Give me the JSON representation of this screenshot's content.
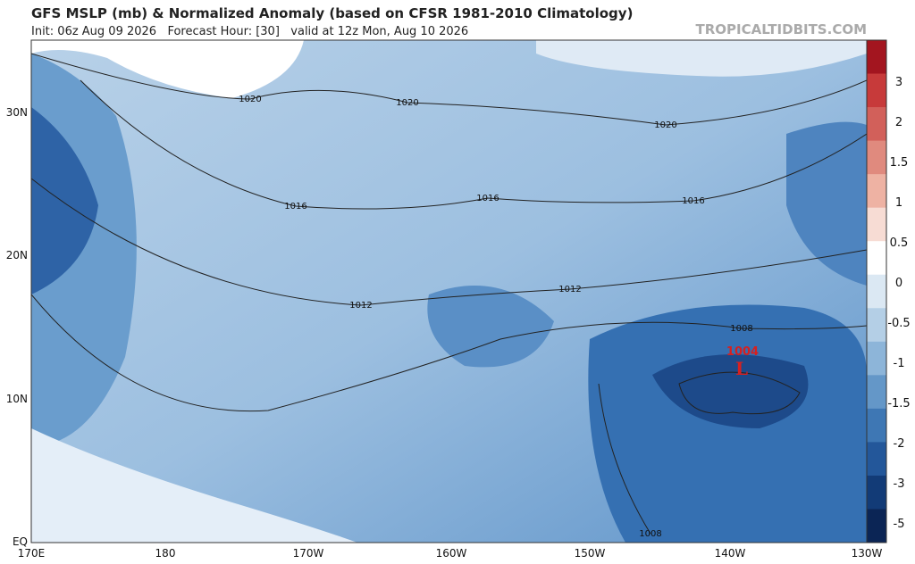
{
  "header": {
    "title": "GFS MSLP (mb) & Normalized Anomaly (based on CFSR 1981-2010 Climatology)",
    "subtitle": "Init: 06z Aug 09 2026   Forecast Hour: [30]   valid at 12z Mon, Aug 10 2026",
    "watermark": "TROPICALTIDBITS.COM"
  },
  "map": {
    "lat_labels": [
      "30N",
      "20N",
      "10N",
      "EQ"
    ],
    "lon_labels": [
      "170E",
      "180",
      "170W",
      "160W",
      "150W",
      "140W",
      "130W"
    ],
    "isobar_labels": [
      "1020",
      "1020",
      "1020",
      "1016",
      "1016",
      "1016",
      "1012",
      "1012",
      "1008",
      "1008"
    ],
    "low": {
      "pressure": "1004",
      "symbol": "L"
    }
  },
  "colorbar": {
    "labels": [
      "3",
      "2",
      "1.5",
      "1",
      "0.5",
      "0",
      "-0.5",
      "-1",
      "-1.5",
      "-2",
      "-3",
      "-5"
    ],
    "colors": [
      "#a3151f",
      "#c73a3a",
      "#d2605a",
      "#e08a7e",
      "#eeb2a3",
      "#f7dcd4",
      "#ffffff",
      "#dbe8f3",
      "#b4cfe6",
      "#8db5d9",
      "#6497c8",
      "#3e77b4",
      "#23579a",
      "#123b77",
      "#0b2555"
    ]
  }
}
